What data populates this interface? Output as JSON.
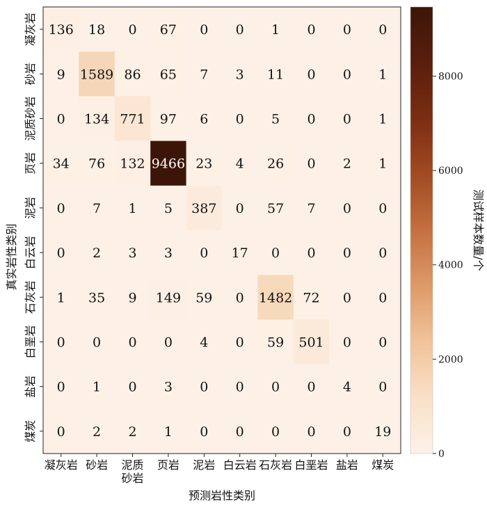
{
  "chart_data": {
    "type": "heatmap",
    "xlabel": "预测岩性类别",
    "ylabel": "真实岩性类别",
    "colorbar_label": "测试样本数量/个",
    "x_categories": [
      "凝灰岩",
      "砂岩",
      "泥质砂岩",
      "页岩",
      "泥岩",
      "白云岩",
      "石灰岩",
      "白垩岩",
      "盐岩",
      "煤炭"
    ],
    "x_tick_lines": [
      [
        "凝灰岩"
      ],
      [
        "砂岩"
      ],
      [
        "泥质",
        "砂岩"
      ],
      [
        "页岩"
      ],
      [
        "泥岩"
      ],
      [
        "白云岩"
      ],
      [
        "石灰岩"
      ],
      [
        "白垩岩"
      ],
      [
        "盐岩"
      ],
      [
        "煤炭"
      ]
    ],
    "y_categories": [
      "凝灰岩",
      "砂岩",
      "泥质砂岩",
      "页岩",
      "泥岩",
      "白云岩",
      "石灰岩",
      "白垩岩",
      "盐岩",
      "煤炭"
    ],
    "values": [
      [
        136,
        18,
        0,
        67,
        0,
        0,
        1,
        0,
        0,
        0
      ],
      [
        9,
        1589,
        86,
        65,
        7,
        3,
        11,
        0,
        0,
        1
      ],
      [
        0,
        134,
        771,
        97,
        6,
        0,
        5,
        0,
        0,
        1
      ],
      [
        34,
        76,
        132,
        9466,
        23,
        4,
        26,
        0,
        2,
        1
      ],
      [
        0,
        7,
        1,
        5,
        387,
        0,
        57,
        7,
        0,
        0
      ],
      [
        0,
        2,
        3,
        3,
        0,
        17,
        0,
        0,
        0,
        0
      ],
      [
        1,
        35,
        9,
        149,
        59,
        0,
        1482,
        72,
        0,
        0
      ],
      [
        0,
        0,
        0,
        0,
        4,
        0,
        59,
        501,
        0,
        0
      ],
      [
        0,
        1,
        0,
        3,
        0,
        0,
        0,
        0,
        4,
        0
      ],
      [
        0,
        2,
        2,
        1,
        0,
        0,
        0,
        0,
        0,
        19
      ]
    ],
    "colorbar_range": [
      0,
      9466
    ],
    "colorbar_ticks": [
      0,
      2000,
      4000,
      6000,
      8000
    ],
    "colormap": [
      "#fdf1e7",
      "#f9e0c8",
      "#f1c39a",
      "#de9a68",
      "#c4703f",
      "#a24a22",
      "#7b2d12",
      "#5a1e0d",
      "#3d1508"
    ],
    "grid": false
  }
}
